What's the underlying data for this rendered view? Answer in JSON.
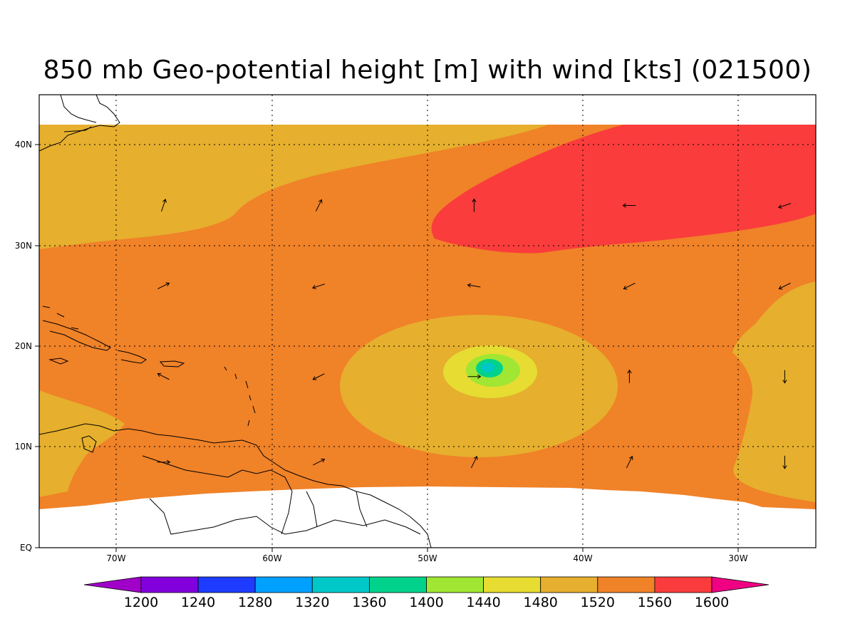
{
  "title": "850 mb Geo-potential height [m] with wind [kts] (021500)",
  "axes": {
    "lon_labels": [
      "70W",
      "60W",
      "50W",
      "40W",
      "30W"
    ],
    "lat_labels": [
      "40N",
      "30N",
      "20N",
      "10N",
      "EQ"
    ],
    "lon_range": [
      -75,
      -25
    ],
    "lat_range": [
      0,
      45
    ],
    "grid": true
  },
  "colorbar": {
    "levels": [
      "1200",
      "1240",
      "1280",
      "1320",
      "1360",
      "1400",
      "1440",
      "1480",
      "1520",
      "1560",
      "1600"
    ],
    "colors": [
      "#a000c8",
      "#8200dc",
      "#1e3cff",
      "#00a0ff",
      "#00c8c8",
      "#00d28c",
      "#a0e632",
      "#e6dc32",
      "#e6af2d",
      "#f08228",
      "#fa3c3c",
      "#f00082"
    ]
  },
  "fill_colors": {
    "c1480": "#e6dc32",
    "c1520": "#e6af2d",
    "c1560": "#f08228",
    "c1600": "#fa3c3c",
    "c1440": "#a0e632",
    "c1400": "#00d28c",
    "c1360": "#00c8c8"
  },
  "wind_vectors": [
    {
      "lon": -67,
      "lat": 34,
      "u": 1,
      "v": 3
    },
    {
      "lon": -57,
      "lat": 34,
      "u": 1,
      "v": 2
    },
    {
      "lon": -47,
      "lat": 34,
      "u": 0,
      "v": 3
    },
    {
      "lon": -37,
      "lat": 34,
      "u": -3,
      "v": 0
    },
    {
      "lon": -27,
      "lat": 34,
      "u": -3,
      "v": -1
    },
    {
      "lon": -67,
      "lat": 26,
      "u": 2,
      "v": 1
    },
    {
      "lon": -57,
      "lat": 26,
      "u": -3,
      "v": -1
    },
    {
      "lon": -47,
      "lat": 26,
      "u": -3,
      "v": 0.5
    },
    {
      "lon": -37,
      "lat": 26,
      "u": -2,
      "v": -1
    },
    {
      "lon": -27,
      "lat": 26,
      "u": -2,
      "v": -1
    },
    {
      "lon": -67,
      "lat": 17,
      "u": -2,
      "v": 1
    },
    {
      "lon": -57,
      "lat": 17,
      "u": -2,
      "v": -1
    },
    {
      "lon": -47,
      "lat": 17,
      "u": 3,
      "v": 0
    },
    {
      "lon": -37,
      "lat": 17,
      "u": 0,
      "v": 2
    },
    {
      "lon": -27,
      "lat": 17,
      "u": 0,
      "v": -2
    },
    {
      "lon": -67,
      "lat": 8.5,
      "u": 3,
      "v": 0
    },
    {
      "lon": -57,
      "lat": 8.5,
      "u": 2,
      "v": 1
    },
    {
      "lon": -47,
      "lat": 8.5,
      "u": 1,
      "v": 2
    },
    {
      "lon": -37,
      "lat": 8.5,
      "u": 1,
      "v": 2
    },
    {
      "lon": -27,
      "lat": 8.5,
      "u": 0,
      "v": -2
    }
  ]
}
